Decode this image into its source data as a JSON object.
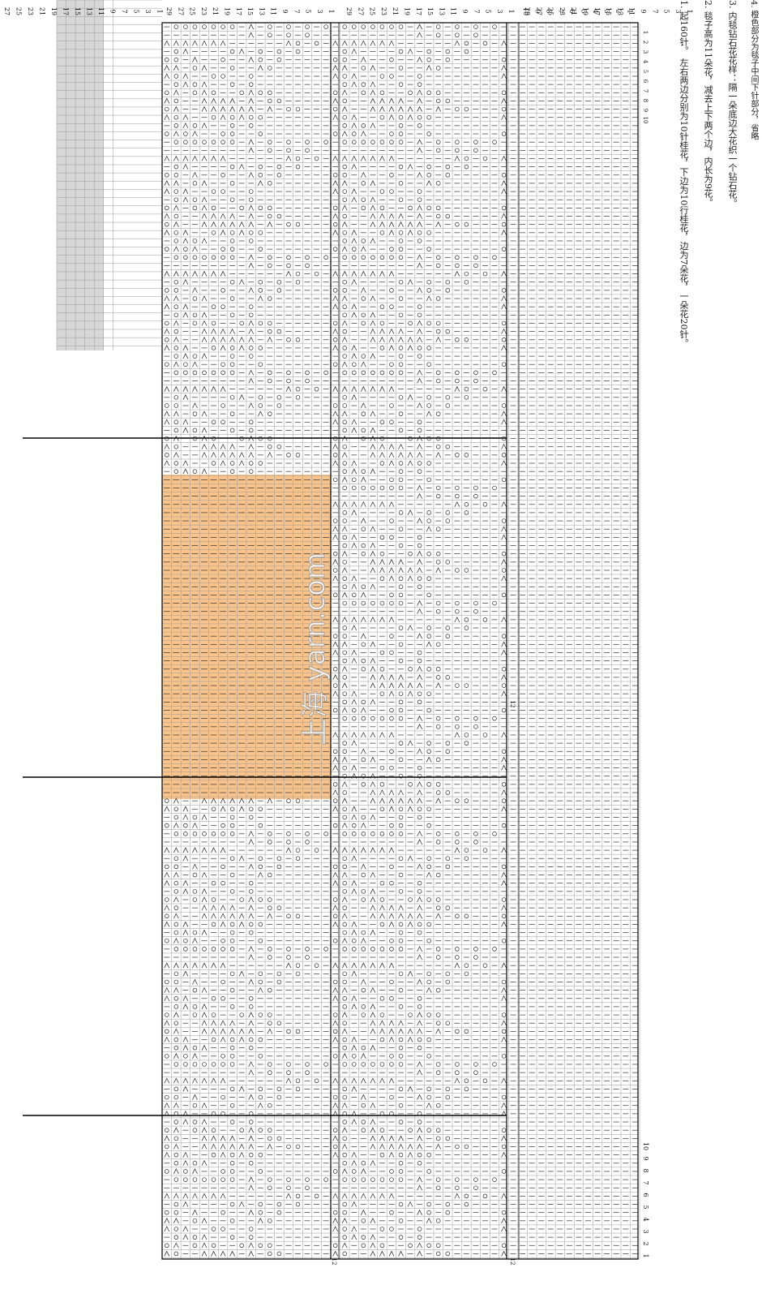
{
  "pattern": {
    "motif_rows": [
      "—ΟΟΟΟΟΟΟ—Λ—Ο—Ο—Ο—Ο",
      "—————————Λ—Ο—Ο—Ο",
      "ΛΛΛΛΛΛΛ——————ΛΟ—Ο—Ο",
      "—ΟΛ————ΟΛ—Ο—Ο—Ο",
      "ΟΟ—Λ——Ο——ΛΟ—Ο",
      "ΛΛ—ΟΛ——Ο——ΛΟ",
      "ΛΟΛ——ΟΟ——Ο",
      "—ΟΛΟΛ——Ο—Ο",
      "ΟΛ—ΟΛΟ——ΟΛΟΟ",
      "ΛΟ——ΛΛΛΛ—Λ—ΟΟ",
      "ΟΛ——ΛΛΛΛΛΛ—Λ—ΟΟ",
      "ΛΟΛ——ΟΛΟΛΟΟ",
      "—ΟΛΟΛ——Ο—Ο",
      "ΟΛΟΛ——ΟΟ——Ο"
    ],
    "left_row_numbers": [
      "27",
      "25",
      "23",
      "21",
      "19",
      "17",
      "15",
      "13",
      "11",
      "9",
      "7",
      "5",
      "3",
      "1"
    ],
    "block_row_numbers": [
      "29",
      "27",
      "25",
      "23",
      "21",
      "19",
      "17",
      "15",
      "13",
      "11",
      "9",
      "7",
      "5",
      "3",
      "1"
    ],
    "edge_row_numbers": [
      "10",
      "9",
      "8",
      "7",
      "6",
      "5",
      "4",
      "3",
      "2",
      "1"
    ],
    "col_numbers": [
      "1",
      "2",
      "3",
      "4",
      "5",
      "6",
      "7",
      "8",
      "9",
      "10"
    ],
    "section_labels": [
      "12",
      "12",
      "12"
    ],
    "watermark": "上海 yarn.com"
  },
  "notes": [
    "1. 起160针。 左右两边分别为10针桂花，下边为10行桂花，边为7朵花，一朵花20针。",
    "2. 毯子高为11朵花，减去上下两个边，内长为9花。",
    "3. 内毯钻石花花样：隔一朵底边大花织一个钻石花。",
    "4. 橙色部分为毯子中间下针部分，省略"
  ],
  "colors": {
    "orange": "#f8c48c",
    "gray": "#d7d7d7",
    "grid": "#9a9a9a",
    "line": "#000000"
  }
}
